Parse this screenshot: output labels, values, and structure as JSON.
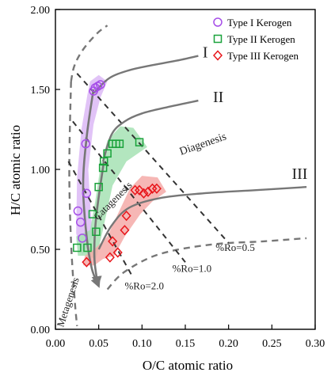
{
  "chart_data": {
    "type": "scatter",
    "title": "",
    "xlabel": "O/C atomic ratio",
    "ylabel": "H/C atomic ratio",
    "xlim": [
      0.0,
      0.3
    ],
    "ylim": [
      0.0,
      2.0
    ],
    "x_ticks": [
      "0.00",
      "0.05",
      "0.10",
      "0.15",
      "0.20",
      "0.25",
      "0.30"
    ],
    "y_ticks": [
      "0.00",
      "0.50",
      "1.00",
      "1.50",
      "2.00"
    ],
    "legend_position": "top-right",
    "colors": {
      "type1": "#a64ee8",
      "type2": "#19a23a",
      "type3": "#e8161b",
      "type1_field": "#dcb8f6",
      "type2_field": "#a6e2b4",
      "type3_field": "#f5aaa8",
      "curve": "#777777",
      "dashed": "#555555"
    },
    "series": [
      {
        "name": "Type I Kerogen",
        "marker": "circle",
        "color": "#a64ee8",
        "points": [
          [
            0.044,
            1.49
          ],
          [
            0.046,
            1.51
          ],
          [
            0.049,
            1.52
          ],
          [
            0.052,
            1.53
          ],
          [
            0.035,
            1.16
          ],
          [
            0.036,
            0.85
          ],
          [
            0.026,
            0.74
          ],
          [
            0.029,
            0.67
          ],
          [
            0.031,
            0.57
          ]
        ]
      },
      {
        "name": "Type II Kerogen",
        "marker": "square",
        "color": "#19a23a",
        "points": [
          [
            0.066,
            1.16
          ],
          [
            0.07,
            1.16
          ],
          [
            0.074,
            1.16
          ],
          [
            0.097,
            1.17
          ],
          [
            0.06,
            1.1
          ],
          [
            0.056,
            1.05
          ],
          [
            0.055,
            1.01
          ],
          [
            0.05,
            0.89
          ],
          [
            0.043,
            0.72
          ],
          [
            0.047,
            0.61
          ],
          [
            0.025,
            0.51
          ],
          [
            0.037,
            0.51
          ]
        ]
      },
      {
        "name": "Type III Kerogen",
        "marker": "diamond",
        "color": "#e8161b",
        "points": [
          [
            0.092,
            0.87
          ],
          [
            0.097,
            0.87
          ],
          [
            0.102,
            0.85
          ],
          [
            0.107,
            0.86
          ],
          [
            0.112,
            0.88
          ],
          [
            0.117,
            0.88
          ],
          [
            0.082,
            0.71
          ],
          [
            0.08,
            0.62
          ],
          [
            0.066,
            0.55
          ],
          [
            0.072,
            0.48
          ],
          [
            0.063,
            0.45
          ],
          [
            0.036,
            0.42
          ]
        ]
      }
    ],
    "evolution_curves": [
      {
        "label": "I",
        "points": [
          [
            0.045,
            1.48
          ],
          [
            0.062,
            1.57
          ],
          [
            0.085,
            1.62
          ],
          [
            0.11,
            1.65
          ],
          [
            0.14,
            1.68
          ],
          [
            0.165,
            1.71
          ]
        ]
      },
      {
        "label": "II",
        "points": [
          [
            0.055,
            1.05
          ],
          [
            0.065,
            1.22
          ],
          [
            0.08,
            1.3
          ],
          [
            0.1,
            1.35
          ],
          [
            0.13,
            1.39
          ],
          [
            0.165,
            1.43
          ]
        ]
      },
      {
        "label": "III",
        "points": [
          [
            0.05,
            0.5
          ],
          [
            0.065,
            0.65
          ],
          [
            0.085,
            0.76
          ],
          [
            0.12,
            0.82
          ],
          [
            0.17,
            0.85
          ],
          [
            0.23,
            0.87
          ],
          [
            0.29,
            0.89
          ]
        ]
      }
    ],
    "pathway_arrows": [
      [
        [
          0.044,
          1.5
        ],
        [
          0.036,
          1.2
        ],
        [
          0.032,
          0.9
        ],
        [
          0.036,
          0.58
        ],
        [
          0.042,
          0.38
        ],
        [
          0.05,
          0.27
        ]
      ],
      [
        [
          0.056,
          1.05
        ],
        [
          0.047,
          0.7
        ],
        [
          0.045,
          0.45
        ],
        [
          0.049,
          0.28
        ]
      ]
    ],
    "maturity_lines": [
      {
        "label": "%Ro=0.5",
        "label_at": [
          0.185,
          0.49
        ],
        "points": [
          [
            0.025,
            1.6
          ],
          [
            0.2,
            0.54
          ]
        ]
      },
      {
        "label": "%Ro=1.0",
        "label_at": [
          0.135,
          0.36
        ],
        "points": [
          [
            0.02,
            1.3
          ],
          [
            0.15,
            0.42
          ]
        ]
      },
      {
        "label": "%Ro=2.0",
        "label_at": [
          0.08,
          0.25
        ],
        "points": [
          [
            0.015,
            1.05
          ],
          [
            0.09,
            0.32
          ]
        ]
      }
    ],
    "boundary_curves": [
      [
        [
          0.018,
          1.55
        ],
        [
          0.022,
          1.65
        ],
        [
          0.032,
          1.75
        ],
        [
          0.048,
          1.85
        ],
        [
          0.06,
          1.9
        ]
      ],
      [
        [
          0.018,
          1.55
        ],
        [
          0.016,
          1.0
        ],
        [
          0.018,
          0.55
        ],
        [
          0.022,
          0.2
        ],
        [
          0.025,
          0.02
        ]
      ],
      [
        [
          0.06,
          0.25
        ],
        [
          0.08,
          0.36
        ],
        [
          0.12,
          0.47
        ],
        [
          0.18,
          0.53
        ],
        [
          0.24,
          0.55
        ],
        [
          0.29,
          0.57
        ]
      ]
    ],
    "fields": [
      {
        "color": "#dcb8f6",
        "points": [
          [
            0.04,
            1.55
          ],
          [
            0.05,
            1.59
          ],
          [
            0.06,
            1.55
          ],
          [
            0.052,
            1.45
          ],
          [
            0.044,
            1.28
          ],
          [
            0.038,
            1.0
          ],
          [
            0.04,
            0.8
          ],
          [
            0.043,
            0.58
          ],
          [
            0.031,
            0.46
          ],
          [
            0.024,
            0.6
          ],
          [
            0.025,
            0.95
          ],
          [
            0.03,
            1.25
          ],
          [
            0.037,
            1.47
          ]
        ]
      },
      {
        "color": "#a6e2b4",
        "points": [
          [
            0.052,
            1.02
          ],
          [
            0.06,
            1.18
          ],
          [
            0.075,
            1.27
          ],
          [
            0.09,
            1.26
          ],
          [
            0.106,
            1.14
          ],
          [
            0.082,
            1.05
          ],
          [
            0.066,
            0.9
          ],
          [
            0.054,
            0.6
          ],
          [
            0.047,
            0.44
          ],
          [
            0.035,
            0.46
          ],
          [
            0.026,
            0.46
          ],
          [
            0.024,
            0.58
          ],
          [
            0.04,
            0.62
          ],
          [
            0.046,
            0.8
          ]
        ]
      },
      {
        "color": "#f5aaa8",
        "points": [
          [
            0.032,
            0.4
          ],
          [
            0.045,
            0.4
          ],
          [
            0.055,
            0.44
          ],
          [
            0.068,
            0.46
          ],
          [
            0.08,
            0.58
          ],
          [
            0.098,
            0.72
          ],
          [
            0.112,
            0.8
          ],
          [
            0.128,
            0.86
          ],
          [
            0.118,
            0.95
          ],
          [
            0.1,
            0.96
          ],
          [
            0.086,
            0.88
          ],
          [
            0.072,
            0.72
          ],
          [
            0.06,
            0.58
          ],
          [
            0.045,
            0.5
          ],
          [
            0.034,
            0.46
          ]
        ]
      }
    ],
    "annotations": [
      {
        "text": "I",
        "at": [
          0.17,
          1.7
        ],
        "rotate": 0,
        "size": 20,
        "name": "label-curve-i"
      },
      {
        "text": "II",
        "at": [
          0.182,
          1.42
        ],
        "rotate": 0,
        "size": 20,
        "name": "label-curve-ii"
      },
      {
        "text": "III",
        "at": [
          0.273,
          0.94
        ],
        "rotate": 0,
        "size": 20,
        "name": "label-curve-iii"
      },
      {
        "text": "Diagenesis",
        "at": [
          0.145,
          1.09
        ],
        "rotate": -19,
        "size": 14,
        "name": "label-diagenesis"
      },
      {
        "text": "Catagenesis",
        "at": [
          0.049,
          0.68
        ],
        "rotate": -45,
        "size": 13,
        "name": "label-catagenesis"
      },
      {
        "text": "Metagenesis",
        "at": [
          0.009,
          0.01
        ],
        "rotate": -72,
        "size": 13,
        "name": "label-metagenesis"
      }
    ]
  }
}
